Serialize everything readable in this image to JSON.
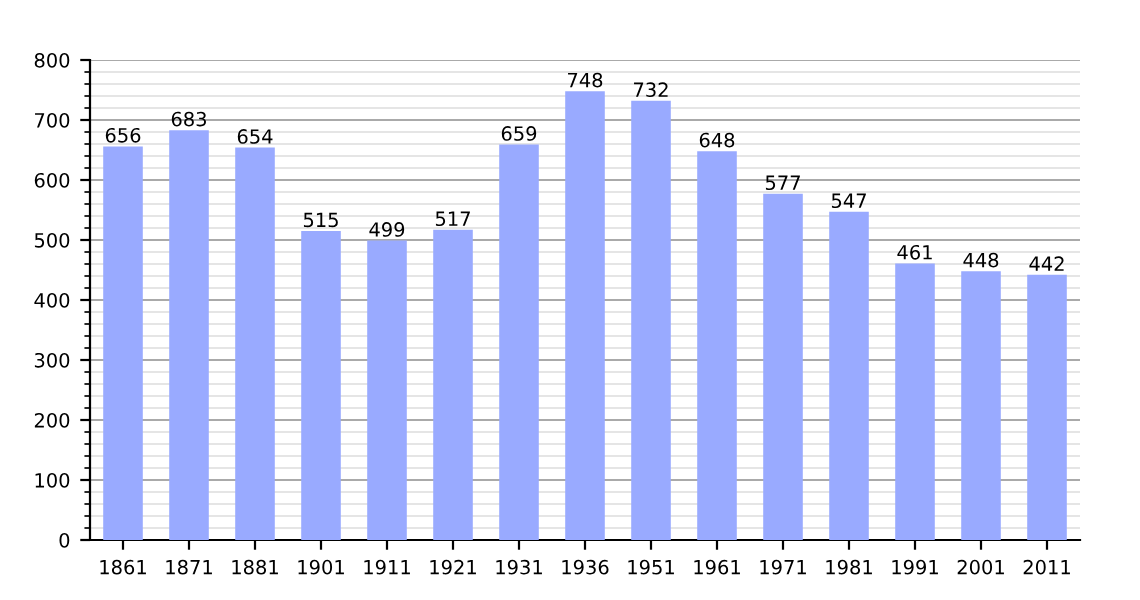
{
  "chart_data": {
    "type": "bar",
    "categories": [
      "1861",
      "1871",
      "1881",
      "1901",
      "1911",
      "1921",
      "1931",
      "1936",
      "1951",
      "1961",
      "1971",
      "1981",
      "1991",
      "2001",
      "2011"
    ],
    "values": [
      656,
      683,
      654,
      515,
      499,
      517,
      659,
      748,
      732,
      648,
      577,
      547,
      461,
      448,
      442
    ],
    "color": "#99aaff",
    "ylim": [
      0,
      800
    ],
    "yticks": [
      0,
      100,
      200,
      300,
      400,
      500,
      600,
      700,
      800
    ],
    "grid": "y",
    "data_labels": true
  }
}
